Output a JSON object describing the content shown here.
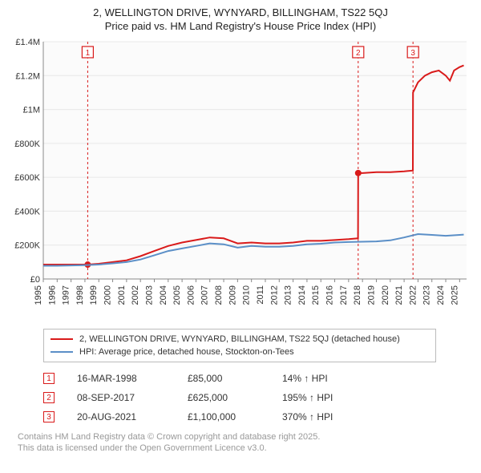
{
  "title_line1": "2, WELLINGTON DRIVE, WYNYARD, BILLINGHAM, TS22 5QJ",
  "title_line2": "Price paid vs. HM Land Registry's House Price Index (HPI)",
  "title_fontsize": 13,
  "chart": {
    "type": "line",
    "background_color": "#ffffff",
    "plot_background_color": "#fbfbfb",
    "grid_color": "#e8e8e8",
    "axis_color": "#888888",
    "x_years": [
      1995,
      1996,
      1997,
      1998,
      1999,
      2000,
      2001,
      2002,
      2003,
      2004,
      2005,
      2006,
      2007,
      2008,
      2009,
      2010,
      2011,
      2012,
      2013,
      2014,
      2015,
      2016,
      2017,
      2018,
      2019,
      2020,
      2021,
      2022,
      2023,
      2024,
      2025
    ],
    "y_ticks": [
      0,
      200000,
      400000,
      600000,
      800000,
      1000000,
      1200000,
      1400000
    ],
    "y_tick_labels": [
      "£0",
      "£200K",
      "£400K",
      "£600K",
      "£800K",
      "£1M",
      "£1.2M",
      "£1.4M"
    ],
    "ylim": [
      0,
      1400000
    ],
    "xlim": [
      1995,
      2025.5
    ],
    "x_label_fontsize": 11,
    "y_label_fontsize": 11,
    "series": [
      {
        "name": "price_paid",
        "label": "2, WELLINGTON DRIVE, WYNYARD, BILLINGHAM, TS22 5QJ (detached house)",
        "color": "#d91a1a",
        "line_width": 2,
        "data": [
          [
            1995,
            85000
          ],
          [
            1996,
            85000
          ],
          [
            1997,
            85000
          ],
          [
            1998.2,
            85000
          ],
          [
            1998.21,
            85000
          ],
          [
            1999,
            90000
          ],
          [
            2000,
            100000
          ],
          [
            2001,
            110000
          ],
          [
            2002,
            135000
          ],
          [
            2003,
            165000
          ],
          [
            2004,
            195000
          ],
          [
            2005,
            215000
          ],
          [
            2006,
            230000
          ],
          [
            2007,
            245000
          ],
          [
            2008,
            240000
          ],
          [
            2008.5,
            225000
          ],
          [
            2009,
            210000
          ],
          [
            2010,
            215000
          ],
          [
            2011,
            210000
          ],
          [
            2012,
            210000
          ],
          [
            2013,
            215000
          ],
          [
            2014,
            225000
          ],
          [
            2015,
            225000
          ],
          [
            2016,
            230000
          ],
          [
            2017,
            235000
          ],
          [
            2017.68,
            240000
          ],
          [
            2017.69,
            625000
          ],
          [
            2018,
            625000
          ],
          [
            2019,
            630000
          ],
          [
            2020,
            630000
          ],
          [
            2021,
            635000
          ],
          [
            2021.63,
            640000
          ],
          [
            2021.64,
            1100000
          ],
          [
            2022,
            1160000
          ],
          [
            2022.5,
            1200000
          ],
          [
            2023,
            1220000
          ],
          [
            2023.5,
            1230000
          ],
          [
            2024,
            1200000
          ],
          [
            2024.3,
            1170000
          ],
          [
            2024.6,
            1230000
          ],
          [
            2025,
            1250000
          ],
          [
            2025.3,
            1260000
          ]
        ],
        "markers": [
          [
            1998.2,
            85000
          ],
          [
            2017.69,
            625000
          ]
        ],
        "marker_style": "circle",
        "marker_size": 4
      },
      {
        "name": "hpi",
        "label": "HPI: Average price, detached house, Stockton-on-Tees",
        "color": "#5b8fc7",
        "line_width": 2,
        "data": [
          [
            1995,
            78000
          ],
          [
            1996,
            78000
          ],
          [
            1997,
            80000
          ],
          [
            1998,
            82000
          ],
          [
            1999,
            85000
          ],
          [
            2000,
            92000
          ],
          [
            2001,
            100000
          ],
          [
            2002,
            115000
          ],
          [
            2003,
            140000
          ],
          [
            2004,
            165000
          ],
          [
            2005,
            180000
          ],
          [
            2006,
            195000
          ],
          [
            2007,
            210000
          ],
          [
            2008,
            205000
          ],
          [
            2009,
            185000
          ],
          [
            2010,
            195000
          ],
          [
            2011,
            190000
          ],
          [
            2012,
            190000
          ],
          [
            2013,
            195000
          ],
          [
            2014,
            205000
          ],
          [
            2015,
            208000
          ],
          [
            2016,
            215000
          ],
          [
            2017,
            218000
          ],
          [
            2018,
            220000
          ],
          [
            2019,
            222000
          ],
          [
            2020,
            228000
          ],
          [
            2021,
            245000
          ],
          [
            2022,
            265000
          ],
          [
            2023,
            260000
          ],
          [
            2024,
            255000
          ],
          [
            2025,
            260000
          ],
          [
            2025.3,
            262000
          ]
        ]
      }
    ],
    "event_markers": [
      {
        "n": "1",
        "x": 1998.2,
        "color": "#d91a1a"
      },
      {
        "n": "2",
        "x": 2017.69,
        "color": "#d91a1a"
      },
      {
        "n": "3",
        "x": 2021.64,
        "color": "#d91a1a"
      }
    ]
  },
  "legend": {
    "items": [
      {
        "color": "#d91a1a",
        "label": "2, WELLINGTON DRIVE, WYNYARD, BILLINGHAM, TS22 5QJ (detached house)"
      },
      {
        "color": "#5b8fc7",
        "label": "HPI: Average price, detached house, Stockton-on-Tees"
      }
    ],
    "border_color": "#bbbbbb",
    "fontsize": 11
  },
  "events": [
    {
      "n": "1",
      "color": "#d91a1a",
      "date": "16-MAR-1998",
      "price": "£85,000",
      "pct": "14% ↑ HPI"
    },
    {
      "n": "2",
      "color": "#d91a1a",
      "date": "08-SEP-2017",
      "price": "£625,000",
      "pct": "195% ↑ HPI"
    },
    {
      "n": "3",
      "color": "#d91a1a",
      "date": "20-AUG-2021",
      "price": "£1,100,000",
      "pct": "370% ↑ HPI"
    }
  ],
  "footnote_line1": "Contains HM Land Registry data © Crown copyright and database right 2025.",
  "footnote_line2": "This data is licensed under the Open Government Licence v3.0."
}
